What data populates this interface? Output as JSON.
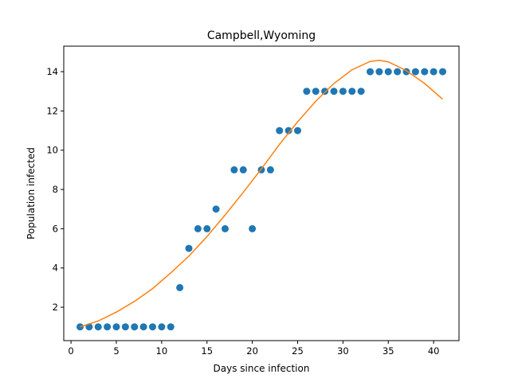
{
  "chart_data": {
    "type": "scatter",
    "title": "Campbell,Wyoming",
    "xlabel": "Days since infection",
    "ylabel": "Population infected",
    "xlim": [
      -0.8,
      42.8
    ],
    "ylim": [
      0.3,
      15.3
    ],
    "xticks": [
      0,
      5,
      10,
      15,
      20,
      25,
      30,
      35,
      40
    ],
    "yticks": [
      2,
      4,
      6,
      8,
      10,
      12,
      14
    ],
    "grid": false,
    "colors": {
      "points": "#1f77b4",
      "fit": "#ff7f0e"
    },
    "series": [
      {
        "type": "scatter",
        "x": [
          1,
          2,
          3,
          4,
          5,
          6,
          7,
          8,
          9,
          10,
          11,
          12,
          13,
          14,
          15,
          16,
          17,
          18,
          19,
          20,
          21,
          22,
          23,
          24,
          25,
          26,
          27,
          28,
          29,
          30,
          31,
          32,
          33,
          34,
          35,
          36,
          37,
          38,
          39,
          40,
          41
        ],
        "y": [
          1,
          1,
          1,
          1,
          1,
          1,
          1,
          1,
          1,
          1,
          1,
          3,
          5,
          6,
          6,
          7,
          6,
          9,
          9,
          6,
          9,
          9,
          11,
          11,
          11,
          13,
          13,
          13,
          13,
          13,
          13,
          13,
          14,
          14,
          14,
          14,
          14,
          14,
          14,
          14,
          14
        ]
      },
      {
        "type": "line",
        "x": [
          1,
          3,
          5,
          7,
          9,
          11,
          13,
          15,
          17,
          19,
          21,
          23,
          25,
          27,
          29,
          31,
          33,
          34,
          35,
          37,
          39,
          41
        ],
        "y": [
          1.0,
          1.3,
          1.75,
          2.3,
          2.95,
          3.75,
          4.6,
          5.6,
          6.7,
          7.85,
          9.05,
          10.3,
          11.45,
          12.5,
          13.4,
          14.1,
          14.52,
          14.58,
          14.5,
          14.05,
          13.4,
          12.6
        ]
      }
    ]
  }
}
